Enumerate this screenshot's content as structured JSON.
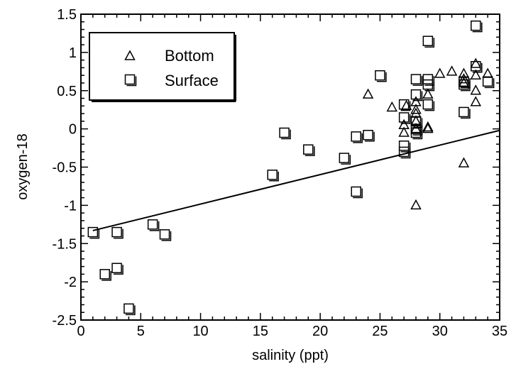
{
  "chart_data": {
    "type": "scatter",
    "title": "",
    "xlabel": "salinity (ppt)",
    "ylabel": "oxygen-18",
    "xlim": [
      0,
      35
    ],
    "ylim": [
      -2.5,
      1.5
    ],
    "xticks": [
      0,
      5,
      10,
      15,
      20,
      25,
      30,
      35
    ],
    "xtick_labels": [
      "0",
      "5",
      "10",
      "15",
      "20",
      "25",
      "30",
      "35"
    ],
    "yticks": [
      -2.5,
      -2,
      -1.5,
      -1,
      -0.5,
      0,
      0.5,
      1,
      1.5
    ],
    "ytick_labels": [
      "-2.5",
      "-2",
      "-1.5",
      "-1",
      "-0.5",
      "0",
      "0.5",
      "1",
      "1.5"
    ],
    "grid": false,
    "legend_position": "top-left",
    "series": [
      {
        "name": "Bottom",
        "marker": "triangle",
        "points": [
          [
            24,
            0.45
          ],
          [
            26,
            0.28
          ],
          [
            27,
            0.05
          ],
          [
            27,
            -0.05
          ],
          [
            27.2,
            0.3
          ],
          [
            28,
            0.35
          ],
          [
            28,
            0.25
          ],
          [
            28,
            0.2
          ],
          [
            28,
            0.1
          ],
          [
            28,
            0.0
          ],
          [
            28,
            -1.0
          ],
          [
            29,
            0.45
          ],
          [
            29,
            0.02
          ],
          [
            29,
            0.0
          ],
          [
            30,
            0.72
          ],
          [
            31,
            0.75
          ],
          [
            32,
            0.72
          ],
          [
            32,
            0.65
          ],
          [
            32,
            0.6
          ],
          [
            32,
            -0.45
          ],
          [
            33,
            0.85
          ],
          [
            33,
            0.7
          ],
          [
            33,
            0.5
          ],
          [
            33,
            0.35
          ],
          [
            34,
            0.72
          ]
        ]
      },
      {
        "name": "Surface",
        "marker": "square",
        "points": [
          [
            1,
            -1.35
          ],
          [
            2,
            -1.9
          ],
          [
            3,
            -1.35
          ],
          [
            3,
            -1.82
          ],
          [
            4,
            -2.35
          ],
          [
            6,
            -1.25
          ],
          [
            7,
            -1.38
          ],
          [
            16,
            -0.6
          ],
          [
            17,
            -0.05
          ],
          [
            19,
            -0.27
          ],
          [
            22,
            -0.38
          ],
          [
            23,
            -0.1
          ],
          [
            23,
            -0.82
          ],
          [
            24,
            -0.08
          ],
          [
            25,
            0.7
          ],
          [
            27,
            0.32
          ],
          [
            27,
            0.15
          ],
          [
            27,
            -0.22
          ],
          [
            27,
            -0.3
          ],
          [
            28,
            0.65
          ],
          [
            28,
            0.45
          ],
          [
            28,
            0.1
          ],
          [
            28,
            0.0
          ],
          [
            28,
            -0.05
          ],
          [
            29,
            1.15
          ],
          [
            29,
            0.65
          ],
          [
            29,
            0.58
          ],
          [
            29,
            0.32
          ],
          [
            32,
            0.62
          ],
          [
            32,
            0.58
          ],
          [
            32,
            0.22
          ],
          [
            33,
            1.35
          ],
          [
            33,
            0.82
          ],
          [
            34,
            0.62
          ]
        ]
      }
    ],
    "trendline": {
      "x": [
        1,
        35
      ],
      "y": [
        -1.33,
        -0.02
      ]
    }
  }
}
